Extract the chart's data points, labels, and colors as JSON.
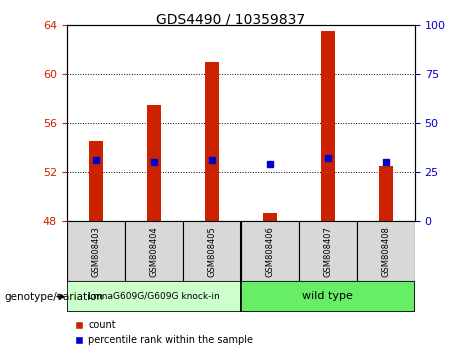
{
  "title": "GDS4490 / 10359837",
  "samples": [
    "GSM808403",
    "GSM808404",
    "GSM808405",
    "GSM808406",
    "GSM808407",
    "GSM808408"
  ],
  "bar_bottoms": [
    48,
    48,
    48,
    48,
    48,
    48
  ],
  "bar_tops": [
    54.5,
    57.5,
    61.0,
    48.7,
    63.5,
    52.5
  ],
  "percentile_right": [
    31,
    30,
    31,
    29,
    32,
    30
  ],
  "ylim_left": [
    48,
    64
  ],
  "ylim_right": [
    0,
    100
  ],
  "yticks_left": [
    48,
    52,
    56,
    60,
    64
  ],
  "yticks_right": [
    0,
    25,
    50,
    75,
    100
  ],
  "bar_color": "#cc2200",
  "dot_color": "#0000cc",
  "group1_label": "LmnaG609G/G609G knock-in",
  "group2_label": "wild type",
  "group1_color": "#ccffcc",
  "group2_color": "#66ee66",
  "legend_count_color": "#cc2200",
  "legend_pct_color": "#0000cc",
  "left_axis_color": "#cc2200",
  "right_axis_color": "#0000cc",
  "genotype_label": "genotype/variation",
  "bg_color": "#d8d8d8",
  "bar_width": 0.25
}
